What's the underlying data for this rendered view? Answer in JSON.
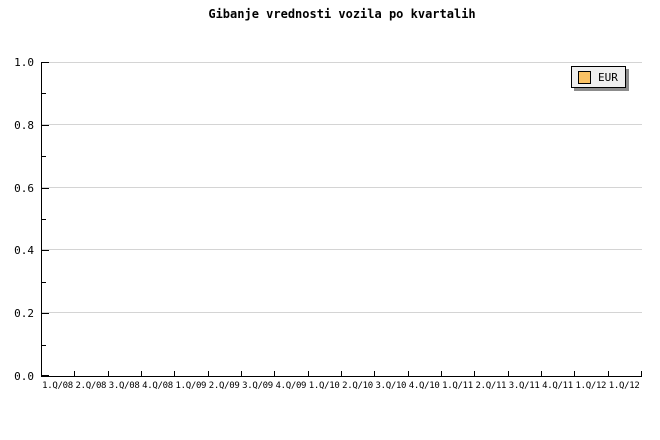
{
  "title": "Gibanje vrednosti vozila po kvartalih",
  "legend": {
    "label": "EUR",
    "swatch_color": "#fbc264",
    "background": "#efefef",
    "shadow_color": "#8c8c8c"
  },
  "colors": {
    "background": "#ffffff",
    "grid": "#d4d4d4",
    "axis": "#000000",
    "text": "#000000"
  },
  "y_axis": {
    "tick_labels": [
      "0.0",
      "0.2",
      "0.4",
      "0.6",
      "0.8",
      "1.0"
    ],
    "tick_values": [
      0.0,
      0.2,
      0.4,
      0.6,
      0.8,
      1.0
    ],
    "minor_tick_values": [
      0.1,
      0.3,
      0.5,
      0.7,
      0.9
    ]
  },
  "x_axis": {
    "tick_labels": [
      "1.Q/08",
      "2.Q/08",
      "3.Q/08",
      "4.Q/08",
      "1.Q/09",
      "2.Q/09",
      "3.Q/09",
      "4.Q/09",
      "1.Q/10",
      "2.Q/10",
      "3.Q/10",
      "4.Q/10",
      "1.Q/11",
      "2.Q/11",
      "3.Q/11",
      "4.Q/11",
      "1.Q/12",
      "1.Q/12"
    ]
  },
  "chart_data": {
    "type": "line",
    "title": "Gibanje vrednosti vozila po kvartalih",
    "categories": [
      "1.Q/08",
      "2.Q/08",
      "3.Q/08",
      "4.Q/08",
      "1.Q/09",
      "2.Q/09",
      "3.Q/09",
      "4.Q/09",
      "1.Q/10",
      "2.Q/10",
      "3.Q/10",
      "4.Q/10",
      "1.Q/11",
      "2.Q/11",
      "3.Q/11",
      "4.Q/11",
      "1.Q/12",
      "1.Q/12"
    ],
    "series": [
      {
        "name": "EUR",
        "color": "#fbc264",
        "values": []
      }
    ],
    "ylim": [
      0.0,
      1.0
    ],
    "y_tick_step": 0.2,
    "grid": true,
    "legend_position": "top-right",
    "note": "plot area is empty - no data points are rendered"
  }
}
